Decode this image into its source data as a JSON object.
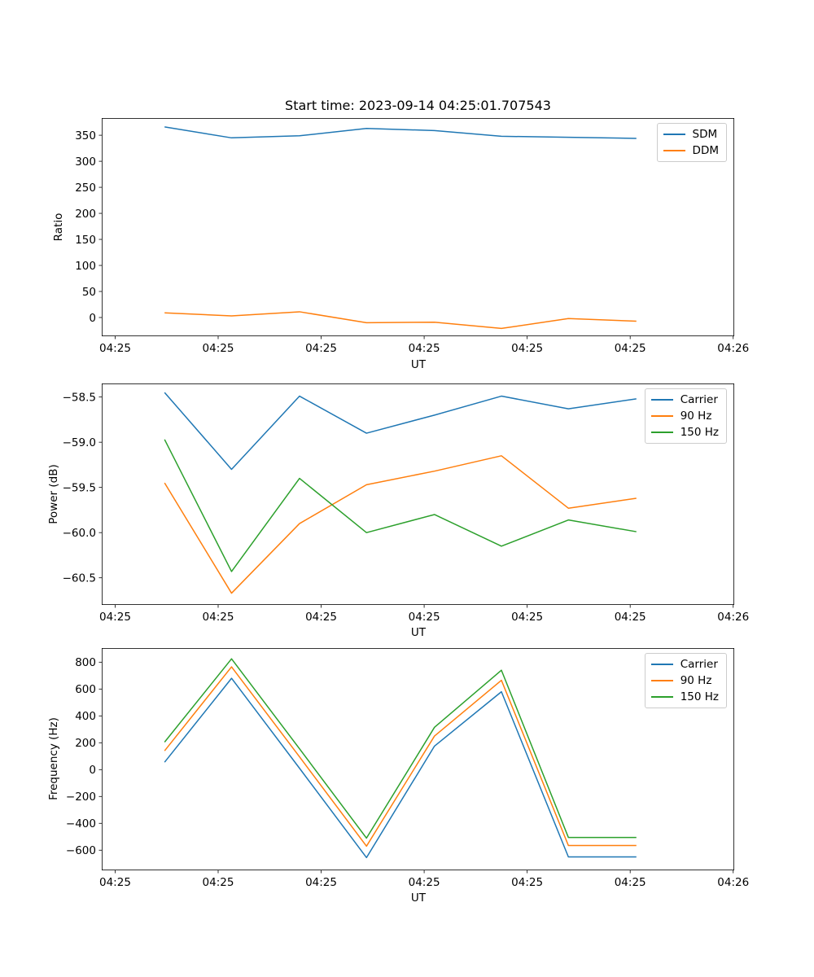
{
  "figure": {
    "title": "Start time: 2023-09-14 04:25:01.707543",
    "background": "#ffffff"
  },
  "colors": {
    "blue": "#1f77b4",
    "orange": "#ff7f0e",
    "green": "#2ca02c",
    "spine": "#000000",
    "legend_border": "#cccccc"
  },
  "chart_data": [
    {
      "type": "line",
      "title": "",
      "xlabel": "UT",
      "ylabel": "Ratio",
      "x_units": "seconds after 04:25:00 (estimated from tick spacing)",
      "x": [
        4.8,
        11.3,
        17.9,
        24.4,
        31.0,
        37.5,
        44.0,
        50.6
      ],
      "xlim": [
        -1.3,
        60.1
      ],
      "xticks": [
        0,
        10,
        20,
        30,
        40,
        50,
        60
      ],
      "xticklabels": [
        "04:25",
        "04:25",
        "04:25",
        "04:25",
        "04:25",
        "04:25",
        "04:26"
      ],
      "ylim": [
        -36,
        383
      ],
      "yticks": [
        350,
        300,
        250,
        200,
        150,
        100,
        50,
        0
      ],
      "yticklabels": [
        "350",
        "300",
        "250",
        "200",
        "150",
        "100",
        "50",
        "0"
      ],
      "grid": false,
      "legend_position": "upper right",
      "series": [
        {
          "name": "SDM",
          "color": "#1f77b4",
          "values": [
            366,
            345,
            349,
            363,
            359,
            348,
            346,
            344
          ]
        },
        {
          "name": "DDM",
          "color": "#ff7f0e",
          "values": [
            9,
            3,
            11,
            -10,
            -9,
            -21,
            -2,
            -7
          ]
        }
      ]
    },
    {
      "type": "line",
      "title": "",
      "xlabel": "UT",
      "ylabel": "Power (dB)",
      "x_units": "seconds after 04:25:00 (estimated from tick spacing)",
      "x": [
        4.8,
        11.3,
        17.9,
        24.4,
        31.0,
        37.5,
        44.0,
        50.6
      ],
      "xlim": [
        -1.3,
        60.1
      ],
      "xticks": [
        0,
        10,
        20,
        30,
        40,
        50,
        60
      ],
      "xticklabels": [
        "04:25",
        "04:25",
        "04:25",
        "04:25",
        "04:25",
        "04:25",
        "04:26"
      ],
      "ylim": [
        -60.8,
        -58.35
      ],
      "yticks": [
        -58.5,
        -59.0,
        -59.5,
        -60.0,
        -60.5
      ],
      "yticklabels": [
        "−58.5",
        "−59.0",
        "−59.5",
        "−60.0",
        "−60.5"
      ],
      "grid": false,
      "legend_position": "upper right",
      "series": [
        {
          "name": "Carrier",
          "color": "#1f77b4",
          "values": [
            -58.45,
            -59.3,
            -58.49,
            -58.9,
            -58.7,
            -58.49,
            -58.63,
            -58.52
          ]
        },
        {
          "name": "90 Hz",
          "color": "#ff7f0e",
          "values": [
            -59.45,
            -60.67,
            -59.9,
            -59.47,
            -59.32,
            -59.15,
            -59.73,
            -59.62
          ]
        },
        {
          "name": "150 Hz",
          "color": "#2ca02c",
          "values": [
            -58.97,
            -60.43,
            -59.4,
            -60.0,
            -59.8,
            -60.15,
            -59.86,
            -59.99
          ]
        }
      ]
    },
    {
      "type": "line",
      "title": "",
      "xlabel": "UT",
      "ylabel": "Frequency (Hz)",
      "x_units": "seconds after 04:25:00 (estimated from tick spacing)",
      "x": [
        4.8,
        11.3,
        17.9,
        24.4,
        31.0,
        37.5,
        44.0,
        50.6
      ],
      "xlim": [
        -1.3,
        60.1
      ],
      "xticks": [
        0,
        10,
        20,
        30,
        40,
        50,
        60
      ],
      "xticklabels": [
        "04:25",
        "04:25",
        "04:25",
        "04:25",
        "04:25",
        "04:25",
        "04:26"
      ],
      "ylim": [
        -750,
        905
      ],
      "yticks": [
        800,
        600,
        400,
        200,
        0,
        -200,
        -400,
        -600
      ],
      "yticklabels": [
        "800",
        "600",
        "400",
        "200",
        "0",
        "−200",
        "−400",
        "−600"
      ],
      "grid": false,
      "legend_position": "upper right",
      "series": [
        {
          "name": "Carrier",
          "color": "#1f77b4",
          "values": [
            55,
            680,
            10,
            -655,
            175,
            580,
            -650,
            -650
          ]
        },
        {
          "name": "90 Hz",
          "color": "#ff7f0e",
          "values": [
            140,
            765,
            95,
            -570,
            250,
            665,
            -565,
            -565
          ]
        },
        {
          "name": "150 Hz",
          "color": "#2ca02c",
          "values": [
            205,
            825,
            155,
            -510,
            315,
            740,
            -505,
            -505
          ]
        }
      ]
    }
  ]
}
